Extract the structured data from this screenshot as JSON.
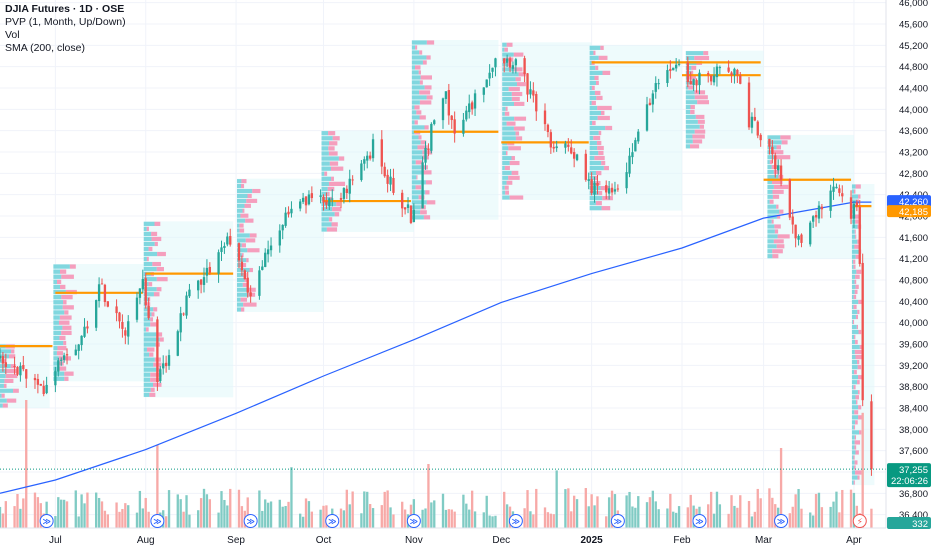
{
  "legend": {
    "symbol": "DJIA Futures · 1D · OSE",
    "indicator_pvp": "PVP (1, Month, Up/Down)",
    "indicator_vol": "Vol",
    "indicator_sma": "SMA (200, close)"
  },
  "badges": {
    "price_last": "37,255",
    "countdown": "22:06:26",
    "sma_value": "42,260",
    "poc_value": "42,185",
    "volume_value": "332"
  },
  "colors": {
    "up": "#26a69a",
    "down": "#ef5350",
    "up_vol": "#80cbc4",
    "down_vol": "#f7a9a7",
    "sma": "#2962ff",
    "poc": "#ff9800",
    "profile_up": "#5ccbd6",
    "profile_down": "#f77fa8",
    "profile_bg": "#e0f7fa",
    "grid": "#f0f3fa",
    "axis_text": "#131722",
    "last_price_badge": "#089981",
    "sma_badge": "#2962ff",
    "poc_badge": "#ff9800"
  },
  "icons": [
    "events-icon",
    "dividends-icon",
    "flash-icon"
  ],
  "chart_data": {
    "type": "candlestick",
    "title": "DJIA Futures · 1D · OSE",
    "y_ticks": [
      46000,
      45600,
      45200,
      44800,
      44400,
      44000,
      43600,
      43200,
      42800,
      42400,
      42000,
      41600,
      41200,
      40800,
      40400,
      40000,
      39600,
      39200,
      38800,
      38400,
      38000,
      37600,
      37200,
      36800,
      36400
    ],
    "y_tick_labels": [
      "46,000",
      "45,600",
      "45,200",
      "44,800",
      "44,400",
      "44,000",
      "43,600",
      "43,200",
      "42,800",
      "42,400",
      "42,000",
      "41,600",
      "41,200",
      "40,800",
      "40,400",
      "40,000",
      "39,600",
      "39,200",
      "38,800",
      "38,400",
      "38,000",
      "37,600",
      "37,200",
      "36,800",
      "36,400"
    ],
    "ylim": [
      36150,
      46050
    ],
    "x_ticks": [
      "Jul",
      "Aug",
      "Sep",
      "Oct",
      "Nov",
      "Dec",
      "2025",
      "Feb",
      "Mar",
      "Apr"
    ],
    "x_tick_dates": [
      "2024-07-01",
      "2024-08-01",
      "2024-09-01",
      "2024-10-01",
      "2024-11-01",
      "2024-12-01",
      "2025-01-01",
      "2025-02-01",
      "2025-03-01",
      "2025-04-01"
    ],
    "xlim": [
      "2024-06-12",
      "2025-04-12"
    ],
    "path_anchors": [
      [
        "2024-06-12",
        39300
      ],
      [
        "2024-06-20",
        39100
      ],
      [
        "2024-06-26",
        38700
      ],
      [
        "2024-07-03",
        39400
      ],
      [
        "2024-07-10",
        39700
      ],
      [
        "2024-07-16",
        40700
      ],
      [
        "2024-07-22",
        40200
      ],
      [
        "2024-07-25",
        39900
      ],
      [
        "2024-07-31",
        40800
      ],
      [
        "2024-08-05",
        38900
      ],
      [
        "2024-08-09",
        39300
      ],
      [
        "2024-08-15",
        40500
      ],
      [
        "2024-08-22",
        41000
      ],
      [
        "2024-08-30",
        41600
      ],
      [
        "2024-09-06",
        40500
      ],
      [
        "2024-09-13",
        41500
      ],
      [
        "2024-09-20",
        42100
      ],
      [
        "2024-09-30",
        42400
      ],
      [
        "2024-10-04",
        42300
      ],
      [
        "2024-10-11",
        42600
      ],
      [
        "2024-10-18",
        43300
      ],
      [
        "2024-10-25",
        42500
      ],
      [
        "2024-10-31",
        42000
      ],
      [
        "2024-11-07",
        43600
      ],
      [
        "2024-11-12",
        44300
      ],
      [
        "2024-11-15",
        43500
      ],
      [
        "2024-11-22",
        44200
      ],
      [
        "2024-11-29",
        45000
      ],
      [
        "2024-12-06",
        44900
      ],
      [
        "2024-12-13",
        44000
      ],
      [
        "2024-12-18",
        43300
      ],
      [
        "2024-12-24",
        43400
      ],
      [
        "2024-12-31",
        42600
      ],
      [
        "2025-01-10",
        42400
      ],
      [
        "2025-01-17",
        43600
      ],
      [
        "2025-01-23",
        44400
      ],
      [
        "2025-01-30",
        44900
      ],
      [
        "2025-02-04",
        44500
      ],
      [
        "2025-02-10",
        44600
      ],
      [
        "2025-02-14",
        44700
      ],
      [
        "2025-02-19",
        44800
      ],
      [
        "2025-02-24",
        43800
      ],
      [
        "2025-03-01",
        43500
      ],
      [
        "2025-03-06",
        42800
      ],
      [
        "2025-03-11",
        41700
      ],
      [
        "2025-03-14",
        41500
      ],
      [
        "2025-03-18",
        41900
      ],
      [
        "2025-03-25",
        42700
      ],
      [
        "2025-03-28",
        42300
      ],
      [
        "2025-03-31",
        41900
      ],
      [
        "2025-04-02",
        42300
      ],
      [
        "2025-04-03",
        41100
      ],
      [
        "2025-04-04",
        38600
      ],
      [
        "2025-04-07",
        37255
      ]
    ],
    "sma_200": [
      [
        "2024-06-12",
        36800
      ],
      [
        "2024-07-01",
        37050
      ],
      [
        "2024-08-01",
        37620
      ],
      [
        "2024-09-01",
        38300
      ],
      [
        "2024-10-01",
        39000
      ],
      [
        "2024-11-01",
        39680
      ],
      [
        "2024-12-01",
        40380
      ],
      [
        "2025-01-01",
        40920
      ],
      [
        "2025-02-01",
        41400
      ],
      [
        "2025-03-01",
        41960
      ],
      [
        "2025-04-01",
        42260
      ],
      [
        "2025-04-07",
        42260
      ]
    ],
    "poc_levels": [
      {
        "start": "2024-06-12",
        "end": "2024-06-30",
        "price": 39560
      },
      {
        "start": "2024-07-01",
        "end": "2024-07-31",
        "price": 40560
      },
      {
        "start": "2024-08-01",
        "end": "2024-08-31",
        "price": 40920
      },
      {
        "start": "2024-10-01",
        "end": "2024-10-31",
        "price": 42280
      },
      {
        "start": "2024-11-01",
        "end": "2024-11-30",
        "price": 43580
      },
      {
        "start": "2024-12-01",
        "end": "2024-12-31",
        "price": 43380
      },
      {
        "start": "2025-01-01",
        "end": "2025-02-28",
        "price": 44880
      },
      {
        "start": "2025-02-01",
        "end": "2025-02-28",
        "price": 44640
      },
      {
        "start": "2025-03-01",
        "end": "2025-03-31",
        "price": 42680
      },
      {
        "start": "2025-04-01",
        "end": "2025-04-07",
        "price": 42185
      }
    ],
    "last_price": 37255,
    "sma_last": 42260,
    "poc_last": 42185,
    "volume_last": 332,
    "volume_spikes": [
      [
        "2024-06-21",
        4.0
      ],
      [
        "2024-08-05",
        2.6
      ],
      [
        "2024-09-20",
        1.9
      ],
      [
        "2024-11-06",
        2.0
      ],
      [
        "2024-12-20",
        1.8
      ],
      [
        "2025-03-07",
        2.5
      ],
      [
        "2025-04-04",
        3.6
      ]
    ],
    "grid": true,
    "legend_position": "top-left"
  }
}
